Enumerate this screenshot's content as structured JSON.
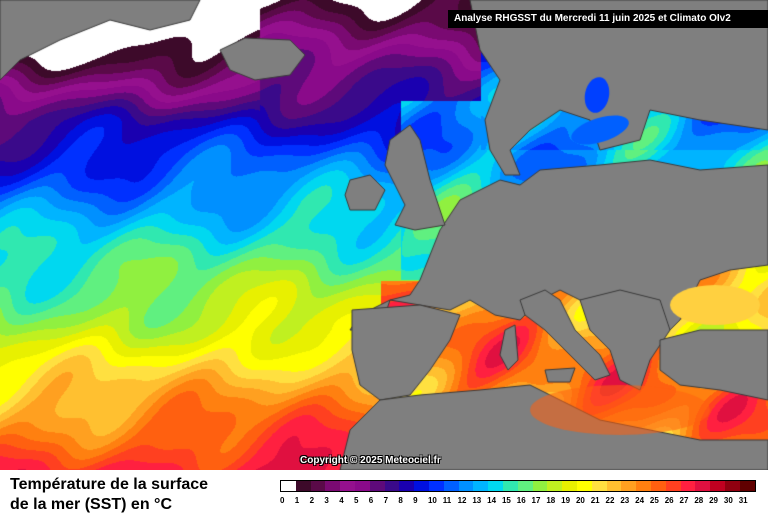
{
  "header": "Analyse RHGSST  du Mercredi 11 juin 2025 et Climato OIv2",
  "copyright": "Copyright © 2025 Meteociel.fr",
  "title": [
    "Température de la surface",
    "de la mer (SST) en °C"
  ],
  "legend": {
    "ticks": [
      "0",
      "1",
      "2",
      "3",
      "4",
      "5",
      "6",
      "7",
      "8",
      "9",
      "10",
      "11",
      "12",
      "13",
      "14",
      "15",
      "16",
      "17",
      "18",
      "19",
      "20",
      "21",
      "22",
      "23",
      "24",
      "25",
      "26",
      "27",
      "28",
      "29",
      "30",
      "31"
    ],
    "colors": [
      "#ffffff",
      "#3d0a2a",
      "#5a0a48",
      "#7a0a72",
      "#95108e",
      "#8a0a8a",
      "#5e0a7a",
      "#3a0a8a",
      "#1a00b0",
      "#0010e0",
      "#0030ff",
      "#0060ff",
      "#0090ff",
      "#00b4ff",
      "#00d8f0",
      "#30e8b0",
      "#60f080",
      "#90f040",
      "#c0f020",
      "#e8f000",
      "#ffff00",
      "#ffe040",
      "#ffc030",
      "#ffa020",
      "#ff8010",
      "#ff6010",
      "#ff4020",
      "#ff2040",
      "#e01040",
      "#c00020",
      "#900010",
      "#600000"
    ]
  },
  "colors": {
    "land": "#7f7f7f",
    "borders": "#3a3a3a",
    "header_bg": "#000000"
  }
}
